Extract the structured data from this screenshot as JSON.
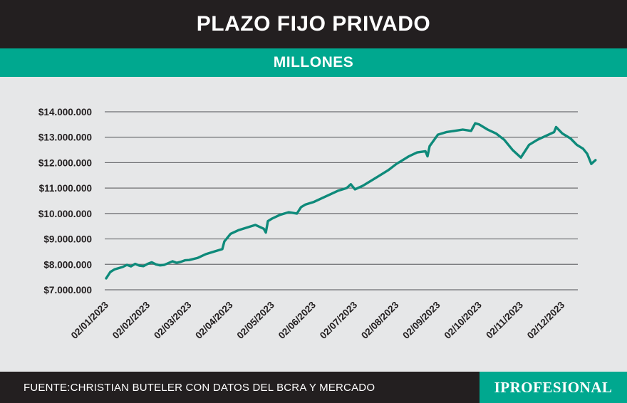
{
  "header": {
    "title": "PLAZO FIJO PRIVADO"
  },
  "subheader": {
    "title": "MILLONES"
  },
  "footer": {
    "source": "FUENTE:CHRISTIAN BUTELER CON DATOS DEL BCRA Y MERCADO",
    "brand": "IPROFESIONAL"
  },
  "colors": {
    "header_bg": "#231f20",
    "accent": "#00a88f",
    "line": "#0e8a7a",
    "grid": "#6d6e71",
    "background": "#e6e7e8"
  },
  "chart_data": {
    "type": "line",
    "title": "PLAZO FIJO PRIVADO",
    "subtitle": "MILLONES",
    "xlabel": "",
    "ylabel": "",
    "ylim": [
      7000000,
      14000000
    ],
    "yticks": [
      7000000,
      8000000,
      9000000,
      10000000,
      11000000,
      12000000,
      13000000,
      14000000
    ],
    "ytick_labels": [
      "$7.000.000",
      "$8.000.000",
      "$9.000.000",
      "$10.000.000",
      "$11.000.000",
      "$12.000.000",
      "$13.000.000",
      "$14.000.000"
    ],
    "xtick_labels": [
      "02/01/2023",
      "02/02/2023",
      "02/03/2023",
      "02/04/2023",
      "02/05/2023",
      "02/06/2023",
      "02/07/2023",
      "02/08/2023",
      "02/09/2023",
      "02/10/2023",
      "02/11/2023",
      "02/12/2023"
    ],
    "grid": true,
    "series": [
      {
        "name": "Plazo fijo privado",
        "x": [
          0,
          0.1,
          0.2,
          0.3,
          0.4,
          0.5,
          0.6,
          0.7,
          0.8,
          0.9,
          1.0,
          1.1,
          1.2,
          1.3,
          1.4,
          1.5,
          1.6,
          1.7,
          1.8,
          1.9,
          2.0,
          2.2,
          2.4,
          2.6,
          2.8,
          2.85,
          2.9,
          3.0,
          3.2,
          3.4,
          3.6,
          3.8,
          3.85,
          3.9,
          4.0,
          4.2,
          4.4,
          4.6,
          4.7,
          4.8,
          5.0,
          5.2,
          5.4,
          5.6,
          5.8,
          5.9,
          6.0,
          6.2,
          6.4,
          6.6,
          6.8,
          7.0,
          7.15,
          7.3,
          7.5,
          7.7,
          7.75,
          7.8,
          8.0,
          8.2,
          8.4,
          8.6,
          8.8,
          8.9,
          9.0,
          9.2,
          9.4,
          9.6,
          9.8,
          10.0,
          10.2,
          10.4,
          10.6,
          10.8,
          10.85,
          11.0,
          11.2,
          11.35,
          11.5,
          11.6,
          11.7,
          11.8
        ],
        "values": [
          7450000,
          7700000,
          7800000,
          7850000,
          7900000,
          7980000,
          7920000,
          8020000,
          7950000,
          7930000,
          8020000,
          8080000,
          8000000,
          7960000,
          7980000,
          8050000,
          8120000,
          8060000,
          8100000,
          8160000,
          8170000,
          8250000,
          8400000,
          8500000,
          8600000,
          8900000,
          9000000,
          9200000,
          9350000,
          9450000,
          9550000,
          9400000,
          9250000,
          9700000,
          9800000,
          9950000,
          10050000,
          10000000,
          10250000,
          10350000,
          10450000,
          10600000,
          10750000,
          10900000,
          11000000,
          11150000,
          10950000,
          11100000,
          11300000,
          11500000,
          11700000,
          11950000,
          12100000,
          12250000,
          12400000,
          12450000,
          12250000,
          12650000,
          13100000,
          13200000,
          13250000,
          13300000,
          13250000,
          13550000,
          13500000,
          13300000,
          13150000,
          12900000,
          12500000,
          12200000,
          12700000,
          12900000,
          13050000,
          13200000,
          13400000,
          13150000,
          12950000,
          12700000,
          12550000,
          12350000,
          11950000,
          12100000
        ]
      }
    ]
  }
}
